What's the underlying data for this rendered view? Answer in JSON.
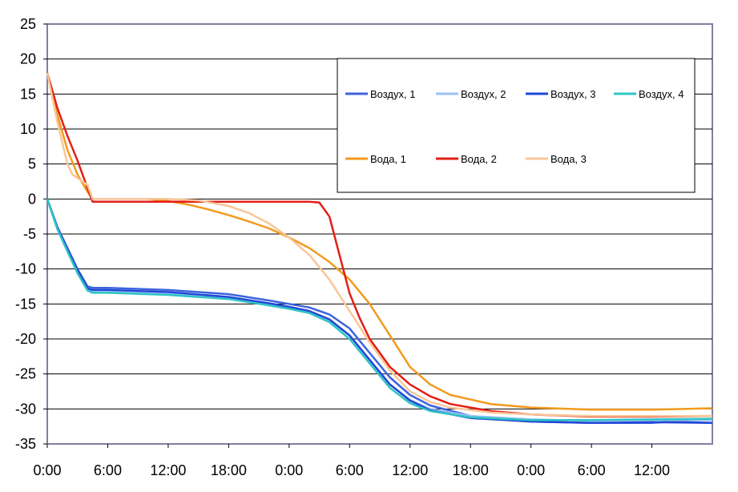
{
  "chart_data": {
    "type": "line",
    "title": "",
    "xlabel": "",
    "ylabel": "",
    "x_ticks": [
      "0:00",
      "6:00",
      "12:00",
      "18:00",
      "0:00",
      "6:00",
      "12:00",
      "18:00",
      "0:00",
      "6:00",
      "12:00"
    ],
    "x_ticks_hours": [
      0,
      6,
      12,
      18,
      24,
      30,
      36,
      42,
      48,
      54,
      60
    ],
    "xlim_hours": [
      0,
      66
    ],
    "ylim": [
      -35,
      25
    ],
    "y_ticks": [
      25,
      20,
      15,
      10,
      5,
      0,
      -5,
      -10,
      -15,
      -20,
      -25,
      -30,
      -35
    ],
    "grid": "horizontal",
    "legend_position": "top-right",
    "series": [
      {
        "name": "Воздух, 1",
        "color": "#3d63dc",
        "x": [
          0,
          1,
          2,
          3,
          4,
          4.5,
          6,
          12,
          18,
          22,
          24,
          26,
          28,
          30,
          32,
          34,
          36,
          38,
          42,
          48,
          54,
          60,
          62,
          66
        ],
        "y": [
          0,
          -4,
          -7,
          -10,
          -12.5,
          -12.7,
          -12.7,
          -13,
          -13.6,
          -14.5,
          -15,
          -15.5,
          -16.5,
          -18.5,
          -22,
          -25.5,
          -28,
          -29.5,
          -31,
          -31.8,
          -32,
          -32,
          -31.8,
          -32
        ]
      },
      {
        "name": "Воздух, 2",
        "color": "#99c2f5",
        "x": [
          0,
          1,
          2,
          3,
          4,
          4.5,
          6,
          12,
          18,
          22,
          24,
          26,
          28,
          30,
          32,
          34,
          36,
          38,
          42,
          48,
          54,
          60,
          66
        ],
        "y": [
          0,
          -4.3,
          -7.5,
          -10.5,
          -13,
          -13.3,
          -13.3,
          -13.6,
          -14.2,
          -15,
          -15.5,
          -16,
          -17.3,
          -19.5,
          -23,
          -26.5,
          -28.7,
          -30,
          -31,
          -31.5,
          -31.7,
          -31.6,
          -31.6
        ]
      },
      {
        "name": "Воздух, 3",
        "color": "#2147d6",
        "x": [
          0,
          1,
          2,
          3,
          4,
          4.5,
          6,
          12,
          18,
          22,
          24,
          26,
          28,
          30,
          32,
          34,
          36,
          38,
          42,
          48,
          54,
          60,
          66
        ],
        "y": [
          0,
          -4.1,
          -7.2,
          -10.2,
          -12.8,
          -13,
          -13,
          -13.3,
          -14,
          -14.9,
          -15.4,
          -16,
          -17.2,
          -19.5,
          -23,
          -26.5,
          -28.8,
          -30.2,
          -31.3,
          -31.8,
          -32,
          -31.9,
          -32
        ]
      },
      {
        "name": "Воздух, 4",
        "color": "#2ec4c4",
        "x": [
          0,
          1,
          2,
          3,
          4,
          4.5,
          6,
          12,
          18,
          22,
          24,
          26,
          28,
          30,
          32,
          34,
          36,
          38,
          42,
          48,
          54,
          60,
          66
        ],
        "y": [
          0,
          -4.3,
          -7.5,
          -10.6,
          -13.1,
          -13.4,
          -13.4,
          -13.7,
          -14.3,
          -15.2,
          -15.7,
          -16.3,
          -17.6,
          -20,
          -23.5,
          -27,
          -29.2,
          -30.3,
          -31.2,
          -31.6,
          -31.6,
          -31.5,
          -31.4
        ]
      },
      {
        "name": "Вода, 1",
        "color": "#f29a1d",
        "x": [
          0,
          1,
          2,
          3,
          4,
          4.5,
          6,
          10,
          12,
          14,
          16,
          18,
          20,
          22,
          24,
          26,
          28,
          30,
          32,
          34,
          36,
          38,
          40,
          44,
          48,
          54,
          60,
          66
        ],
        "y": [
          18,
          12,
          7,
          3.5,
          1,
          0,
          0,
          0,
          -0.3,
          -0.8,
          -1.5,
          -2.3,
          -3.2,
          -4.2,
          -5.5,
          -7,
          -9,
          -11.5,
          -15,
          -19.5,
          -24,
          -26.5,
          -28,
          -29.3,
          -29.8,
          -30.1,
          -30.1,
          -29.9
        ]
      },
      {
        "name": "Вода, 2",
        "color": "#e41e14",
        "x": [
          0,
          1,
          2,
          3,
          4,
          4.5,
          6,
          10,
          15,
          20,
          24,
          26,
          27,
          28,
          29,
          30,
          31,
          32,
          34,
          36,
          38,
          40,
          44,
          48,
          54,
          60,
          66
        ],
        "y": [
          18,
          13,
          9,
          5.5,
          1.5,
          -0.4,
          -0.4,
          -0.4,
          -0.4,
          -0.4,
          -0.4,
          -0.4,
          -0.5,
          -2.5,
          -8,
          -13.5,
          -17,
          -20,
          -24,
          -26.5,
          -28.2,
          -29.3,
          -30.3,
          -30.8,
          -31.1,
          -31.1,
          -31
        ]
      },
      {
        "name": "Вода, 3",
        "color": "#f8c69a",
        "x": [
          0,
          1,
          2,
          2.5,
          3,
          4,
          4.5,
          6,
          10,
          12,
          15,
          18,
          20,
          22,
          24,
          26,
          28,
          30,
          32,
          34,
          36,
          38,
          40,
          44,
          48,
          54,
          60,
          66
        ],
        "y": [
          18,
          11,
          5,
          3.5,
          3,
          2,
          0,
          0,
          0,
          0,
          -0.2,
          -1,
          -2,
          -3.5,
          -5.5,
          -8,
          -11.5,
          -16,
          -20.5,
          -24.5,
          -27.5,
          -29,
          -29.8,
          -30.5,
          -30.8,
          -31,
          -31,
          -31
        ]
      }
    ]
  }
}
